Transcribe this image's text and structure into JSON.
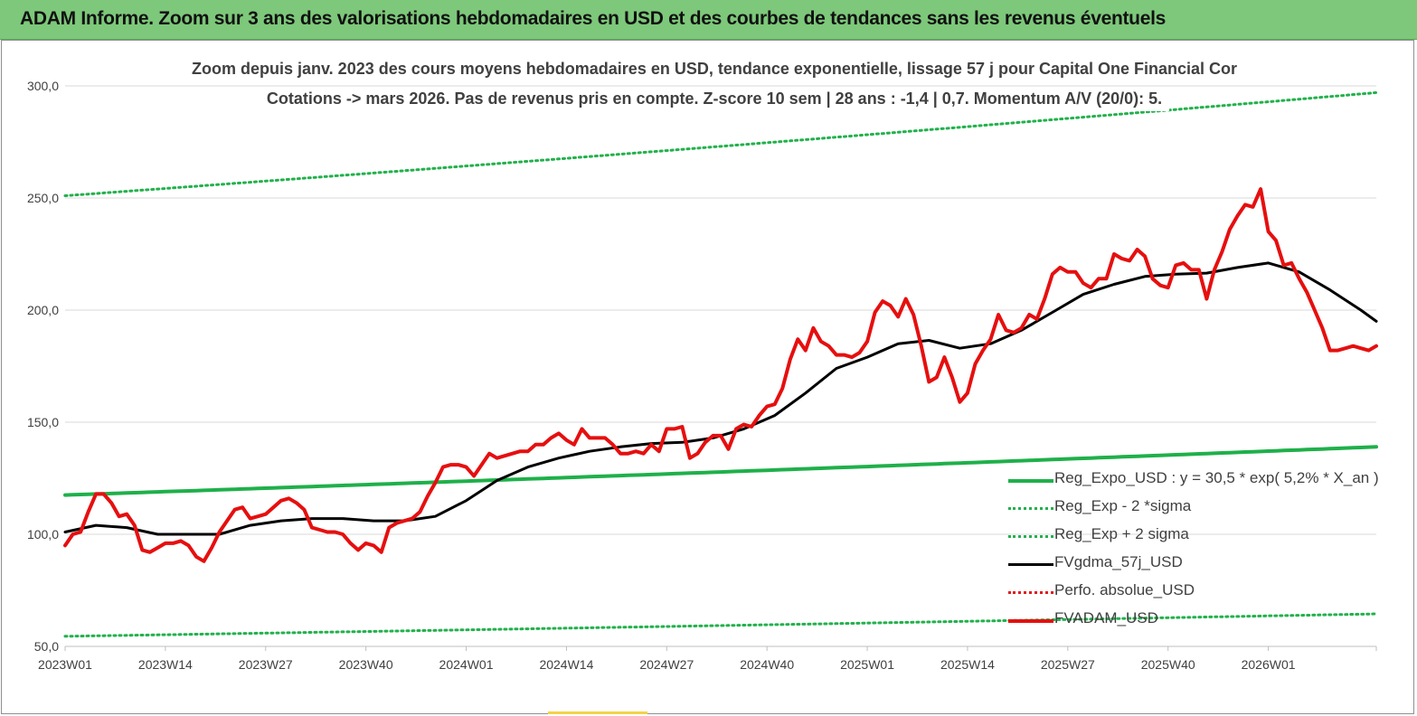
{
  "header": {
    "title": "ADAM Informe. Zoom sur 3 ans des valorisations hebdomadaires en USD et des courbes de tendances sans les revenus éventuels"
  },
  "colors": {
    "banner": "#7dc87a",
    "reg_expo": "#1fb04a",
    "reg_band": "#22b14c",
    "fvgdma": "#000000",
    "perfo": "#e11b1b",
    "fvadam": "#e60f0f",
    "axis_text": "#404040",
    "grid": "#d9d9d9"
  },
  "chart_data": {
    "type": "line",
    "title": "Zoom depuis janv. 2023 des cours moyens hebdomadaires en USD, tendance exponentielle, lissage 57 j pour Capital One Financial Cor",
    "subtitle": "Cotations -> mars 2026. Pas de revenus pris en compte. Z-score 10 sem | 28 ans : -1,4 | 0,7. Momentum A/V (20/0): 5.",
    "xlabel": "",
    "ylabel": "",
    "ylim": [
      50,
      300
    ],
    "yticks": [
      "50,0",
      "100,0",
      "150,0",
      "200,0",
      "250,0",
      "300,0"
    ],
    "ytick_values": [
      50,
      100,
      150,
      200,
      250,
      300
    ],
    "xticks": [
      "2023W01",
      "2023W14",
      "2023W27",
      "2023W40",
      "2024W01",
      "2024W14",
      "2024W27",
      "2024W40",
      "2025W01",
      "2025W14",
      "2025W27",
      "2025W40",
      "2026W01"
    ],
    "x_range_weeks": [
      0,
      170
    ],
    "grid": "horizontal",
    "legend_position": "bottom-right",
    "series": [
      {
        "name": "Reg_Expo_USD : y = 30,5 * exp( 5,2% *  X_an )",
        "style": "solid-thick",
        "color_key": "reg_expo",
        "x": [
          0,
          170
        ],
        "values": [
          117.5,
          139.0
        ],
        "curve": "exponential"
      },
      {
        "name": "Reg_Exp - 2 *sigma",
        "style": "dotted",
        "color_key": "reg_band",
        "x": [
          0,
          170
        ],
        "values": [
          54.5,
          64.5
        ],
        "curve": "exponential"
      },
      {
        "name": "Reg_Exp + 2 sigma",
        "style": "dotted",
        "color_key": "reg_band",
        "x": [
          0,
          170
        ],
        "values": [
          251.0,
          297.0
        ],
        "curve": "exponential"
      },
      {
        "name": "FVgdma_57j_USD",
        "style": "solid",
        "color_key": "fvgdma",
        "x": [
          0,
          4,
          8,
          12,
          16,
          20,
          24,
          28,
          32,
          36,
          40,
          44,
          48,
          52,
          56,
          60,
          64,
          68,
          72,
          76,
          80,
          84,
          88,
          92,
          96,
          100,
          104,
          108,
          112,
          116,
          120,
          124,
          128,
          132,
          136,
          140,
          144,
          148,
          152,
          156,
          160,
          164,
          168,
          170
        ],
        "values": [
          101,
          104,
          103,
          100,
          100,
          100,
          104,
          106,
          107,
          107,
          106,
          106,
          108,
          115,
          124,
          130,
          134,
          137,
          139,
          140.5,
          141,
          143,
          147,
          153,
          163,
          174,
          179,
          185,
          186.5,
          183,
          185,
          191,
          199,
          207,
          211.5,
          215,
          216,
          216.5,
          219,
          221,
          217,
          209,
          200,
          195
        ]
      },
      {
        "name": "Perfo. absolue_USD",
        "style": "dotted",
        "color_key": "perfo",
        "x": [],
        "values": []
      },
      {
        "name": "FVADAM_USD",
        "style": "solid-thick",
        "color_key": "fvadam",
        "x": [
          0,
          1,
          2,
          3,
          4,
          5,
          6,
          7,
          8,
          9,
          10,
          11,
          12,
          13,
          14,
          15,
          16,
          17,
          18,
          19,
          20,
          21,
          22,
          23,
          24,
          25,
          26,
          27,
          28,
          29,
          30,
          31,
          32,
          33,
          34,
          35,
          36,
          37,
          38,
          39,
          40,
          41,
          42,
          43,
          44,
          45,
          46,
          47,
          48,
          49,
          50,
          51,
          52,
          53,
          54,
          55,
          56,
          57,
          58,
          59,
          60,
          61,
          62,
          63,
          64,
          65,
          66,
          67,
          68,
          69,
          70,
          71,
          72,
          73,
          74,
          75,
          76,
          77,
          78,
          79,
          80,
          81,
          82,
          83,
          84,
          85,
          86,
          87,
          88,
          89,
          90,
          91,
          92,
          93,
          94,
          95,
          96,
          97,
          98,
          99,
          100,
          101,
          102,
          103,
          104,
          105,
          106,
          107,
          108,
          109,
          110,
          111,
          112,
          113,
          114,
          115,
          116,
          117,
          118,
          119,
          120,
          121,
          122,
          123,
          124,
          125,
          126,
          127,
          128,
          129,
          130,
          131,
          132,
          133,
          134,
          135,
          136,
          137,
          138,
          139,
          140,
          141,
          142,
          143,
          144,
          145,
          146,
          147,
          148,
          149,
          150,
          151,
          152,
          153,
          154,
          155,
          156,
          157,
          158,
          159,
          160,
          161,
          162,
          163,
          164,
          165,
          166,
          167,
          168,
          169,
          170
        ],
        "values": [
          95,
          100,
          101,
          110,
          118,
          118,
          114,
          108,
          109,
          104,
          93,
          92,
          94,
          96,
          96,
          97,
          95,
          90,
          88,
          94,
          101,
          106,
          111,
          112,
          107,
          108,
          109,
          112,
          115,
          116,
          114,
          111,
          103,
          102,
          101,
          101,
          100,
          96,
          93,
          96,
          95,
          92,
          103,
          105,
          106,
          107,
          110,
          117,
          123,
          130,
          131,
          131,
          130,
          126,
          131,
          136,
          134,
          135,
          136,
          137,
          137,
          140,
          140,
          143,
          145,
          142,
          140,
          147,
          143,
          143,
          143,
          140,
          136,
          136,
          137,
          136,
          140,
          137,
          147,
          147,
          148,
          134,
          136,
          141,
          144,
          144,
          138,
          147,
          149,
          148,
          153,
          157,
          158,
          165,
          178,
          187,
          182,
          192,
          186,
          184,
          180,
          180,
          179,
          181,
          186,
          199,
          204,
          202,
          197,
          205,
          198,
          184,
          168,
          170,
          179,
          170,
          159,
          163,
          176,
          182,
          187,
          198,
          191,
          190,
          192,
          198,
          196,
          205,
          216,
          219,
          217,
          217,
          212,
          210,
          214,
          214,
          225,
          223,
          222,
          227,
          224,
          214,
          211,
          210,
          220,
          221,
          218,
          218,
          205,
          218,
          226,
          236,
          242,
          247,
          246,
          254,
          235,
          231,
          220,
          221,
          214,
          208,
          200,
          192,
          182,
          182,
          183,
          184,
          183,
          182,
          184
        ]
      }
    ]
  }
}
